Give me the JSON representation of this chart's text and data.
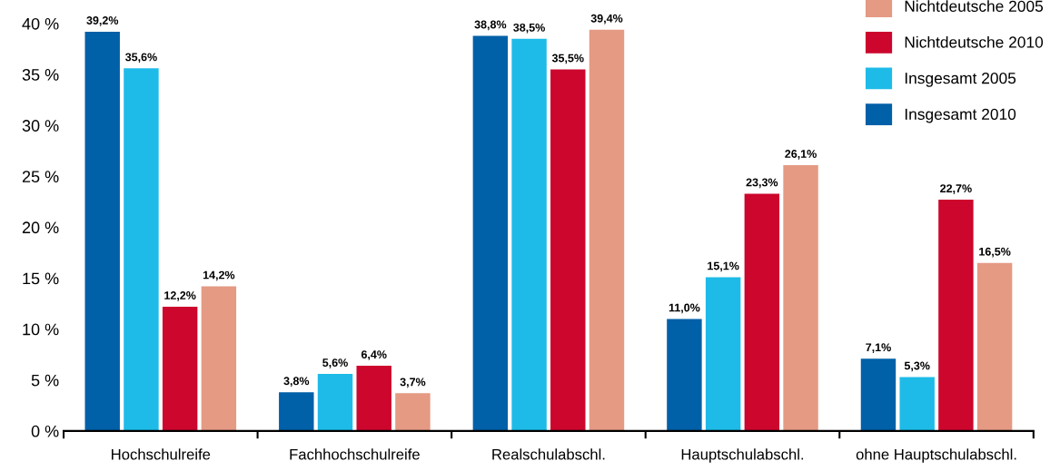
{
  "chart_data": {
    "type": "bar",
    "categories": [
      "Hochschulreife",
      "Fachhochschulreife",
      "Realschulabschl.",
      "Hauptschulabschl.",
      "ohne Hauptschulabschl."
    ],
    "series": [
      {
        "name": "Insgesamt 2010",
        "color": "#0060a8",
        "values": [
          39.2,
          3.8,
          38.8,
          11.0,
          7.1
        ],
        "value_labels": [
          "39,2%",
          "3,8%",
          "38,8%",
          "11,0%",
          "7,1%"
        ]
      },
      {
        "name": "Insgesamt 2005",
        "color": "#1ebbe8",
        "values": [
          35.6,
          5.6,
          38.5,
          15.1,
          5.3
        ],
        "value_labels": [
          "35,6%",
          "5,6%",
          "38,5%",
          "15,1%",
          "5,3%"
        ]
      },
      {
        "name": "Nichtdeutsche 2010",
        "color": "#cc062c",
        "values": [
          12.2,
          6.4,
          35.5,
          23.3,
          22.7
        ],
        "value_labels": [
          "12,2%",
          "6,4%",
          "35,5%",
          "23,3%",
          "22,7%"
        ]
      },
      {
        "name": "Nichtdeutsche 2005",
        "color": "#e59a83",
        "values": [
          14.2,
          3.7,
          39.4,
          26.1,
          16.5
        ],
        "value_labels": [
          "14,2%",
          "3,7%",
          "39,4%",
          "26,1%",
          "16,5%"
        ]
      }
    ],
    "ylim": [
      0,
      40
    ],
    "yticks": [
      {
        "value": 0,
        "label": "0 %"
      },
      {
        "value": 5,
        "label": "5 %"
      },
      {
        "value": 10,
        "label": "10 %"
      },
      {
        "value": 15,
        "label": "15 %"
      },
      {
        "value": 20,
        "label": "20 %"
      },
      {
        "value": 25,
        "label": "25 %"
      },
      {
        "value": 30,
        "label": "30 %"
      },
      {
        "value": 35,
        "label": "35 %"
      },
      {
        "value": 40,
        "label": "40 %"
      }
    ],
    "grid": false,
    "legend": "top right"
  }
}
